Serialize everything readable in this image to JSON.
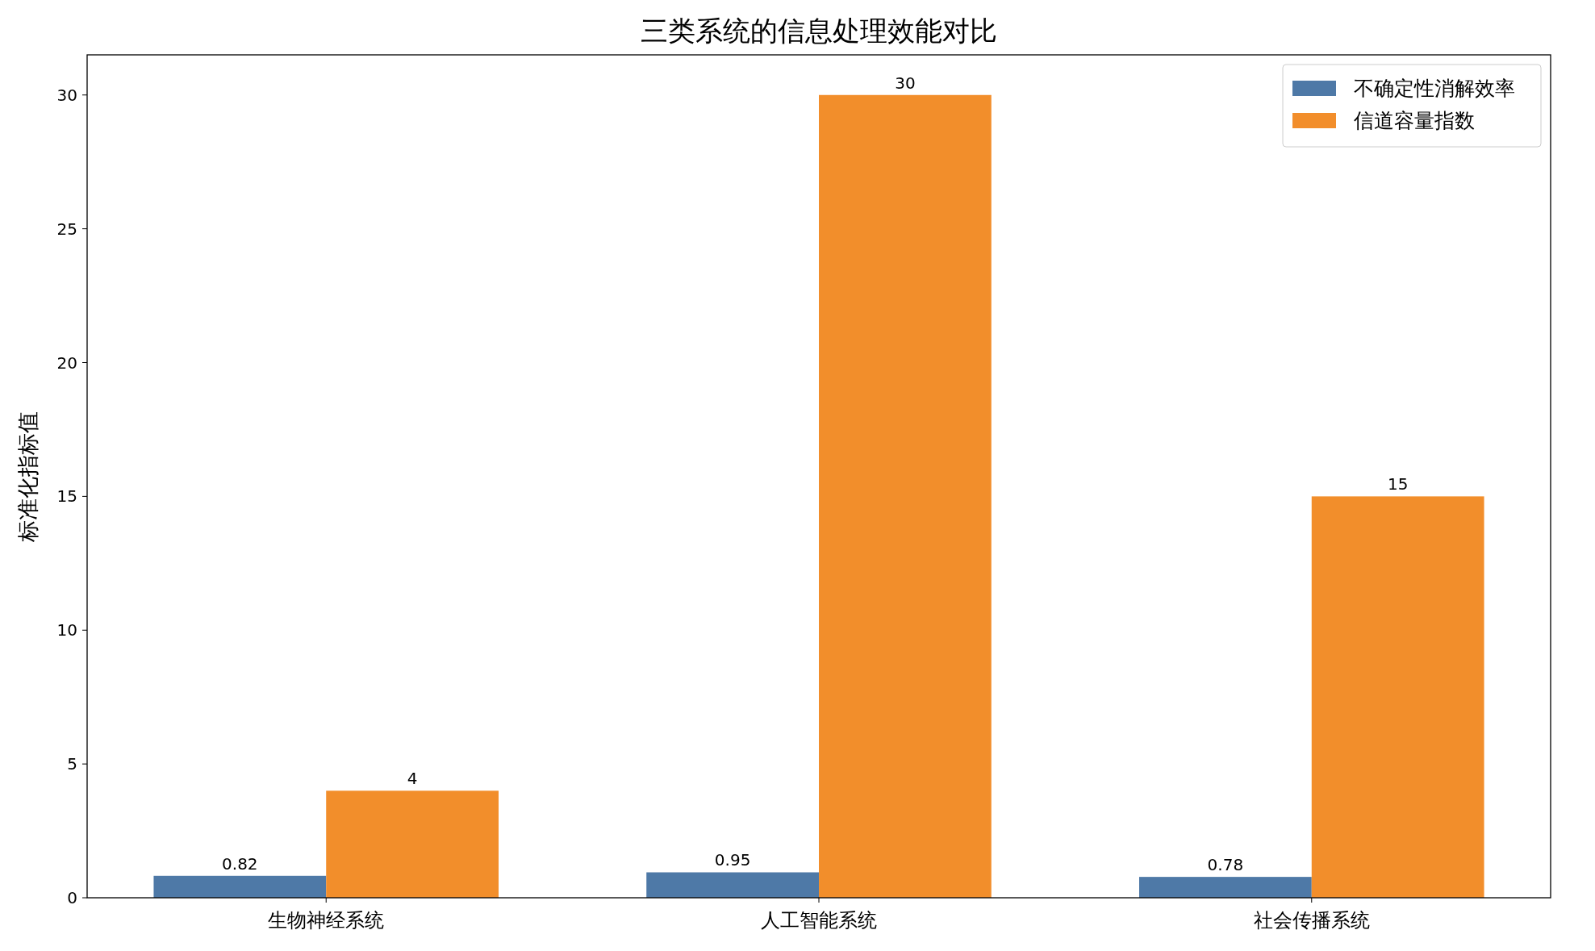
{
  "chart_data": {
    "type": "bar",
    "title": "三类系统的信息处理效能对比",
    "ylabel": "标准化指标值",
    "categories": [
      "生物神经系统",
      "人工智能系统",
      "社会传播系统"
    ],
    "series": [
      {
        "name": "不确定性消解效率",
        "color": "#4e79a7",
        "values": [
          0.82,
          0.95,
          0.78
        ]
      },
      {
        "name": "信道容量指数",
        "color": "#f28e2b",
        "values": [
          4,
          30,
          15
        ]
      }
    ],
    "ylim": [
      0,
      31.5
    ],
    "yticks": [
      0,
      5,
      10,
      15,
      20,
      25,
      30
    ],
    "data_labels": true,
    "legend": "top right",
    "grid": false
  }
}
